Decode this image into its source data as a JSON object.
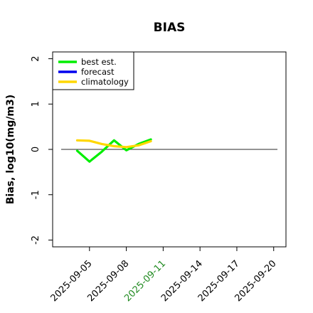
{
  "chart_data": {
    "type": "line",
    "title": "BIAS",
    "ylabel": "Bias, log10(mg/m3)",
    "xlabel": "",
    "xlim": [
      "2025-09-02",
      "2025-09-21"
    ],
    "ylim": [
      -2.15,
      2.15
    ],
    "yticks": [
      -2,
      -1,
      0,
      1,
      2
    ],
    "xticks": [
      "2025-09-05",
      "2025-09-08",
      "2025-09-11",
      "2025-09-14",
      "2025-09-17",
      "2025-09-20"
    ],
    "highlight_tick": "2025-09-11",
    "highlight_color": "#228B22",
    "reference_line": 0,
    "grid": false,
    "legend_position": "top-left",
    "series": [
      {
        "name": "best est.",
        "color": "#00EE00",
        "x": [
          "2025-09-04",
          "2025-09-05",
          "2025-09-06",
          "2025-09-07",
          "2025-09-08",
          "2025-09-09",
          "2025-09-10"
        ],
        "y": [
          -0.03,
          -0.27,
          -0.05,
          0.2,
          -0.02,
          0.12,
          0.22
        ]
      },
      {
        "name": "forecast",
        "color": "#0000EE",
        "x": [],
        "y": []
      },
      {
        "name": "climatology",
        "color": "#FFD700",
        "x": [
          "2025-09-04",
          "2025-09-05",
          "2025-09-06",
          "2025-09-07",
          "2025-09-08",
          "2025-09-09",
          "2025-09-10"
        ],
        "y": [
          0.2,
          0.19,
          0.12,
          0.07,
          0.05,
          0.09,
          0.18
        ]
      }
    ]
  }
}
